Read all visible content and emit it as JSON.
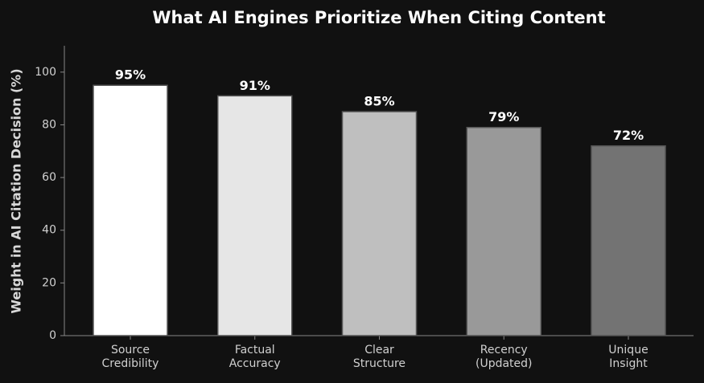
{
  "chart_data": {
    "type": "bar",
    "title": "What AI Engines Prioritize When Citing Content",
    "y_label": "Weight in AI Citation Decision (%)",
    "categories": [
      "Source\nCredibility",
      "Factual\nAccuracy",
      "Clear\nStructure",
      "Recency\n(Updated)",
      "Unique\nInsight"
    ],
    "values": [
      95,
      91,
      85,
      79,
      72
    ],
    "value_labels": [
      "95%",
      "91%",
      "85%",
      "79%",
      "72%"
    ],
    "colors": [
      "#ffffff",
      "#e6e6e6",
      "#bfbfbf",
      "#999999",
      "#737373"
    ],
    "ylim": [
      0,
      110
    ],
    "yticks": [
      0,
      20,
      40,
      60,
      80,
      100
    ],
    "grid": false
  }
}
